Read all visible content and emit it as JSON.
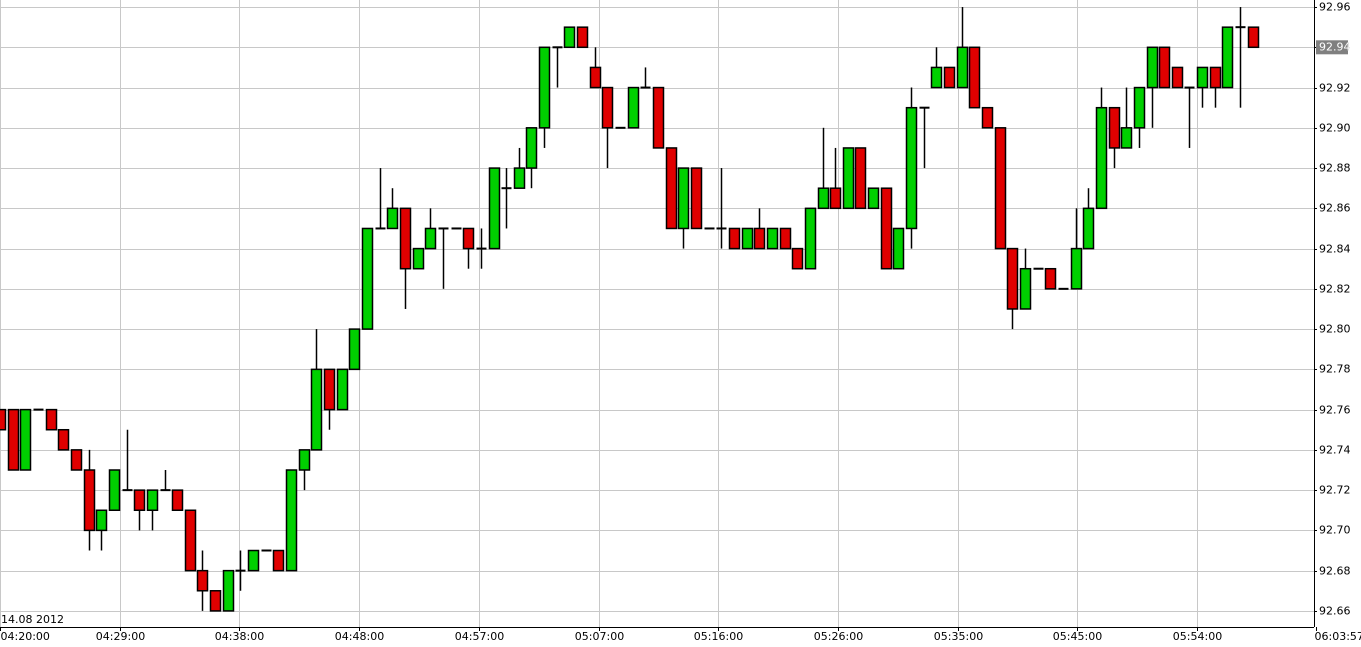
{
  "chart_data": {
    "type": "candlestick",
    "date_label": "14.08 2012",
    "last_price": 92.94,
    "up_color": "#00d000",
    "down_color": "#e00000",
    "x": [
      0,
      1,
      2,
      3,
      4,
      5,
      6,
      7,
      8,
      9,
      10,
      11,
      12,
      13,
      14,
      15,
      16,
      17,
      18,
      19,
      20,
      21,
      22,
      23,
      24,
      25,
      26,
      27,
      28,
      29,
      30,
      31,
      32,
      33,
      34,
      35,
      36,
      37,
      38,
      39,
      40,
      41,
      42,
      43,
      44,
      45,
      46,
      47,
      48,
      49,
      50,
      51,
      52,
      53,
      54,
      55,
      56,
      57,
      58,
      59,
      60,
      61,
      62,
      63,
      64,
      65,
      66,
      67,
      68,
      69,
      70,
      71,
      72,
      73,
      74,
      75,
      76,
      77,
      78,
      79,
      80,
      81,
      82,
      83,
      84,
      85,
      86,
      87,
      88,
      89,
      90,
      91,
      92,
      93,
      94,
      95,
      96,
      97,
      98,
      99
    ],
    "open": [
      92.76,
      92.76,
      92.73,
      92.76,
      92.76,
      92.75,
      92.74,
      92.73,
      92.7,
      92.71,
      92.72,
      92.72,
      92.71,
      92.72,
      92.72,
      92.71,
      92.68,
      92.67,
      92.66,
      92.68,
      92.68,
      92.69,
      92.69,
      92.68,
      92.73,
      92.74,
      92.78,
      92.76,
      92.78,
      92.8,
      92.85,
      92.85,
      92.86,
      92.83,
      92.84,
      92.85,
      92.85,
      92.85,
      92.84,
      92.84,
      92.87,
      92.87,
      92.88,
      92.9,
      92.94,
      92.94,
      92.95,
      92.93,
      92.92,
      92.9,
      92.9,
      92.92,
      92.92,
      92.89,
      92.85,
      92.88,
      92.85,
      92.85,
      92.85,
      92.84,
      92.85,
      92.84,
      92.85,
      92.84,
      92.83,
      92.86,
      92.87,
      92.86,
      92.89,
      92.86,
      92.87,
      92.83,
      92.85,
      92.91,
      92.92,
      92.93,
      92.92,
      92.94,
      92.91,
      92.9,
      92.84,
      92.81,
      92.83,
      92.83,
      92.82,
      92.82,
      92.84,
      92.86,
      92.91,
      92.89,
      92.9,
      92.92,
      92.94,
      92.93,
      92.92,
      92.92,
      92.93,
      92.92,
      92.95,
      92.95
    ],
    "high": [
      92.76,
      92.76,
      92.76,
      92.76,
      92.76,
      92.75,
      92.74,
      92.74,
      92.71,
      92.73,
      92.75,
      92.72,
      92.72,
      92.73,
      92.72,
      92.71,
      92.69,
      92.67,
      92.68,
      92.69,
      92.69,
      92.69,
      92.69,
      92.73,
      92.74,
      92.8,
      92.78,
      92.78,
      92.8,
      92.85,
      92.88,
      92.87,
      92.86,
      92.84,
      92.86,
      92.85,
      92.85,
      92.85,
      92.85,
      92.88,
      92.88,
      92.89,
      92.9,
      92.94,
      92.94,
      92.95,
      92.95,
      92.94,
      92.92,
      92.9,
      92.92,
      92.93,
      92.92,
      92.89,
      92.88,
      92.88,
      92.85,
      92.88,
      92.85,
      92.85,
      92.86,
      92.85,
      92.85,
      92.84,
      92.86,
      92.9,
      92.89,
      92.89,
      92.89,
      92.87,
      92.87,
      92.85,
      92.92,
      92.91,
      92.94,
      92.93,
      92.96,
      92.94,
      92.91,
      92.9,
      92.84,
      92.84,
      92.83,
      92.83,
      92.82,
      92.86,
      92.87,
      92.92,
      92.91,
      92.92,
      92.92,
      92.94,
      92.94,
      92.93,
      92.92,
      92.93,
      92.93,
      92.95,
      92.96,
      92.95
    ],
    "low": [
      92.75,
      92.73,
      92.73,
      92.76,
      92.75,
      92.74,
      92.73,
      92.69,
      92.69,
      92.71,
      92.72,
      92.7,
      92.7,
      92.72,
      92.71,
      92.68,
      92.66,
      92.66,
      92.66,
      92.67,
      92.68,
      92.69,
      92.68,
      92.68,
      92.72,
      92.74,
      92.75,
      92.76,
      92.78,
      92.8,
      92.85,
      92.85,
      92.81,
      92.83,
      92.84,
      92.82,
      92.85,
      92.83,
      92.83,
      92.84,
      92.85,
      92.87,
      92.87,
      92.89,
      92.92,
      92.94,
      92.94,
      92.92,
      92.88,
      92.9,
      92.9,
      92.92,
      92.89,
      92.85,
      92.84,
      92.85,
      92.85,
      92.84,
      92.84,
      92.84,
      92.84,
      92.84,
      92.84,
      92.83,
      92.83,
      92.86,
      92.86,
      92.86,
      92.86,
      92.86,
      92.83,
      92.83,
      92.84,
      92.88,
      92.92,
      92.92,
      92.92,
      92.91,
      92.9,
      92.84,
      92.8,
      92.81,
      92.83,
      92.82,
      92.82,
      92.82,
      92.84,
      92.86,
      92.88,
      92.89,
      92.89,
      92.9,
      92.92,
      92.92,
      92.89,
      92.91,
      92.91,
      92.92,
      92.91,
      92.94
    ],
    "close": [
      92.75,
      92.73,
      92.76,
      92.76,
      92.75,
      92.74,
      92.73,
      92.7,
      92.71,
      92.73,
      92.72,
      92.71,
      92.72,
      92.72,
      92.71,
      92.68,
      92.67,
      92.66,
      92.68,
      92.68,
      92.69,
      92.69,
      92.68,
      92.73,
      92.74,
      92.78,
      92.76,
      92.78,
      92.8,
      92.85,
      92.85,
      92.86,
      92.83,
      92.84,
      92.85,
      92.85,
      92.85,
      92.84,
      92.84,
      92.88,
      92.87,
      92.88,
      92.9,
      92.94,
      92.94,
      92.95,
      92.94,
      92.92,
      92.9,
      92.9,
      92.92,
      92.92,
      92.89,
      92.85,
      92.88,
      92.85,
      92.85,
      92.85,
      92.84,
      92.85,
      92.84,
      92.85,
      92.84,
      92.83,
      92.86,
      92.87,
      92.86,
      92.89,
      92.86,
      92.87,
      92.83,
      92.85,
      92.91,
      92.91,
      92.93,
      92.92,
      92.94,
      92.91,
      92.9,
      92.84,
      92.81,
      92.83,
      92.83,
      92.82,
      92.82,
      92.84,
      92.86,
      92.91,
      92.89,
      92.9,
      92.92,
      92.94,
      92.92,
      92.92,
      92.92,
      92.93,
      92.92,
      92.95,
      92.95,
      92.94
    ],
    "xlim": [
      0,
      104
    ],
    "xticks": [
      {
        "value": 0,
        "label": "04:20:00"
      },
      {
        "value": 9.46,
        "label": "04:29:00"
      },
      {
        "value": 18.92,
        "label": "04:38:00"
      },
      {
        "value": 28.38,
        "label": "04:48:00"
      },
      {
        "value": 37.84,
        "label": "04:57:00"
      },
      {
        "value": 47.3,
        "label": "05:07:00"
      },
      {
        "value": 56.76,
        "label": "05:16:00"
      },
      {
        "value": 66.22,
        "label": "05:26:00"
      },
      {
        "value": 75.68,
        "label": "05:35:00"
      },
      {
        "value": 85.14,
        "label": "05:45:00"
      },
      {
        "value": 94.6,
        "label": "05:54:00"
      },
      {
        "value": 104,
        "label": "06:03:57"
      }
    ],
    "ylim": [
      92.652,
      92.9635
    ],
    "yticks": [
      {
        "value": 92.96,
        "label": "92.96"
      },
      {
        "value": 92.94,
        "label": "92.94"
      },
      {
        "value": 92.92,
        "label": "92.92"
      },
      {
        "value": 92.9,
        "label": "92.90"
      },
      {
        "value": 92.88,
        "label": "92.88"
      },
      {
        "value": 92.86,
        "label": "92.86"
      },
      {
        "value": 92.84,
        "label": "92.84"
      },
      {
        "value": 92.82,
        "label": "92.82"
      },
      {
        "value": 92.8,
        "label": "92.80"
      },
      {
        "value": 92.78,
        "label": "92.78"
      },
      {
        "value": 92.76,
        "label": "92.76"
      },
      {
        "value": 92.74,
        "label": "92.74"
      },
      {
        "value": 92.72,
        "label": "92.72"
      },
      {
        "value": 92.7,
        "label": "92.70"
      },
      {
        "value": 92.68,
        "label": "92.68"
      },
      {
        "value": 92.66,
        "label": "92.66"
      }
    ],
    "grid": true
  }
}
